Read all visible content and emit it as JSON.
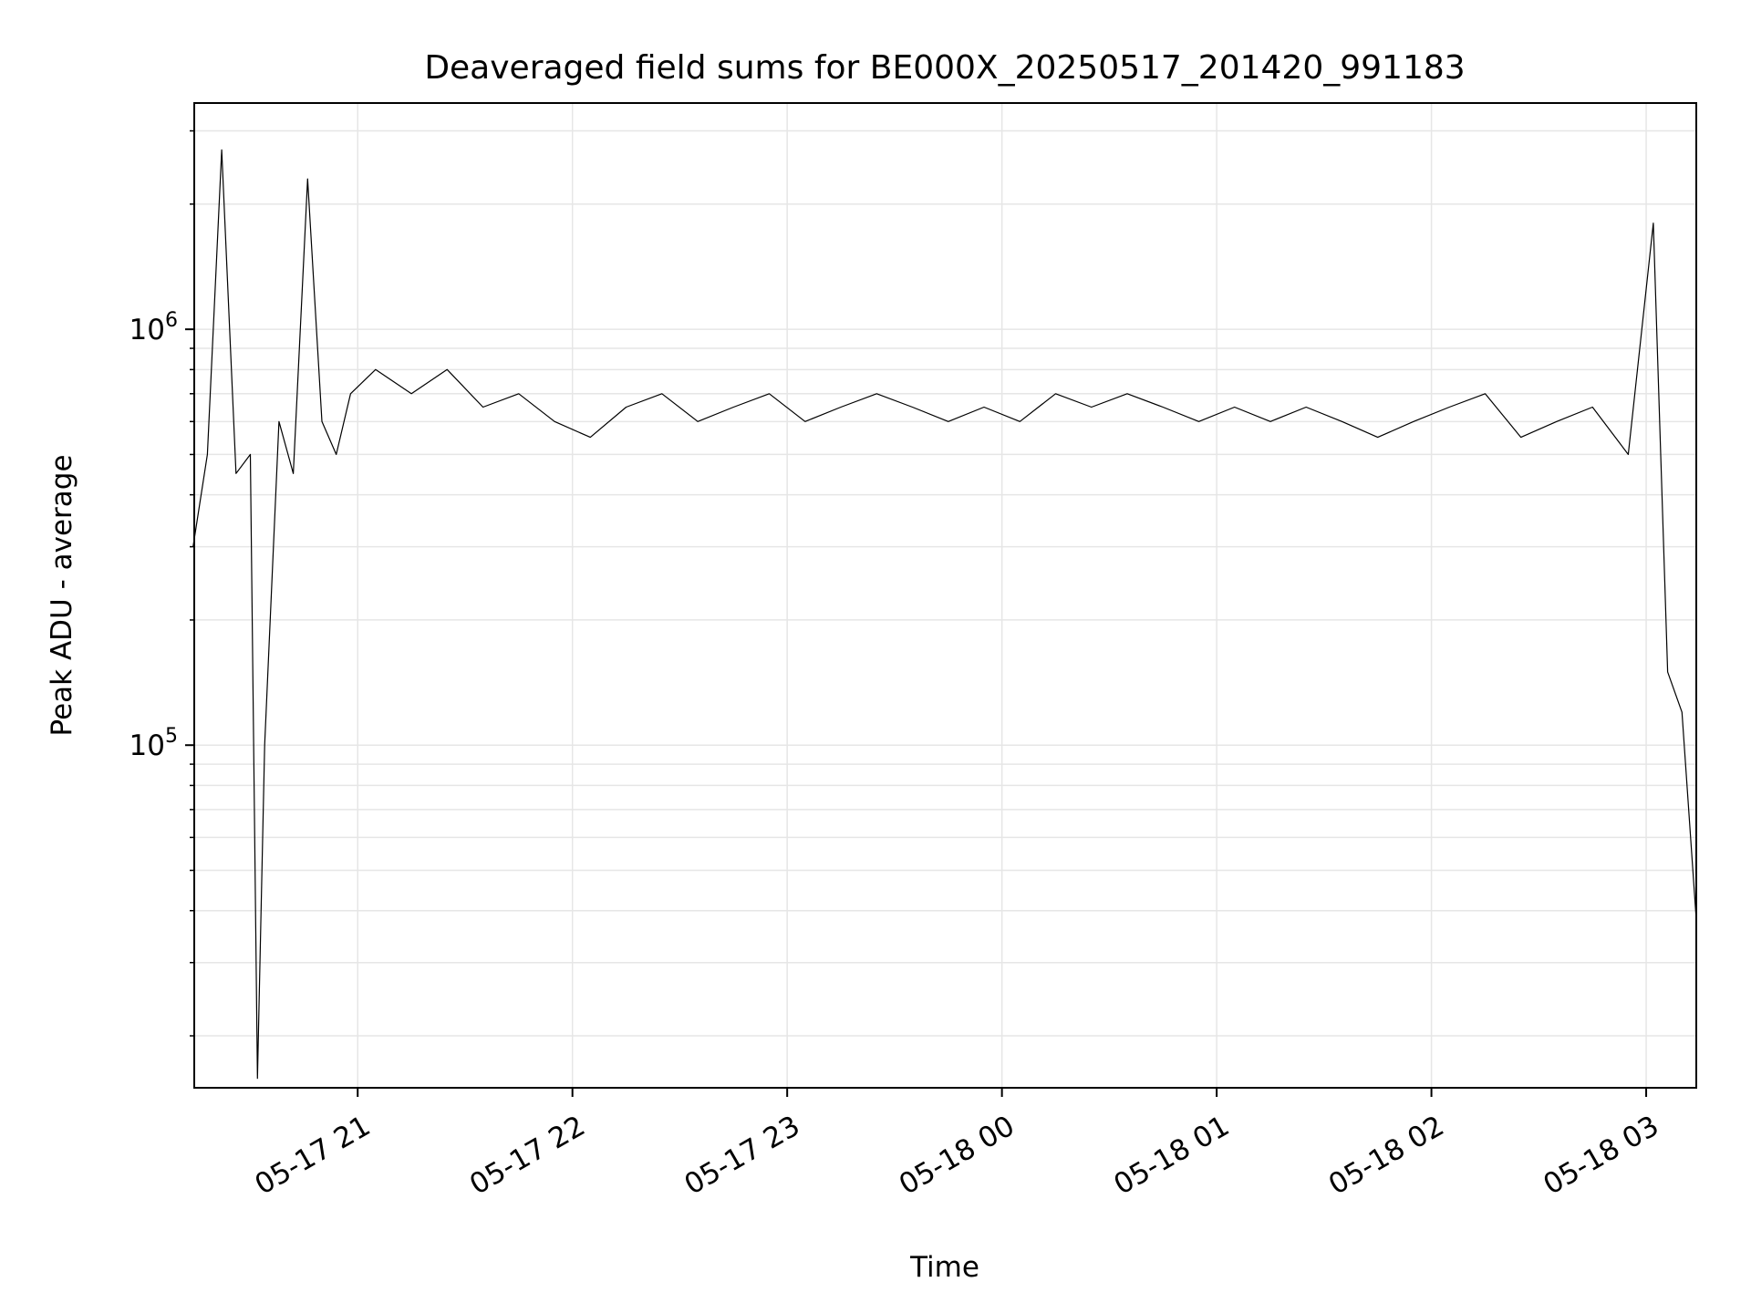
{
  "chart_data": {
    "type": "line",
    "title": "Deaveraged field sums for BE000X_20250517_201420_991183",
    "xlabel": "Time",
    "ylabel": "Peak ADU - average",
    "y_scale": "log",
    "ylim": [
      15000,
      3500000
    ],
    "xlim": [
      "2025-05-17 20:14:20",
      "2025-05-18 03:14:00"
    ],
    "x_ticks": [
      {
        "time": "2025-05-17 21:00",
        "label": "05-17 21"
      },
      {
        "time": "2025-05-17 22:00",
        "label": "05-17 22"
      },
      {
        "time": "2025-05-17 23:00",
        "label": "05-17 23"
      },
      {
        "time": "2025-05-18 00:00",
        "label": "05-18 00"
      },
      {
        "time": "2025-05-18 01:00",
        "label": "05-18 01"
      },
      {
        "time": "2025-05-18 02:00",
        "label": "05-18 02"
      },
      {
        "time": "2025-05-18 03:00",
        "label": "05-18 03"
      }
    ],
    "y_ticks": [
      {
        "value": 100000,
        "base": "10",
        "exp": "5"
      },
      {
        "value": 1000000,
        "base": "10",
        "exp": "6"
      }
    ],
    "grid": true,
    "line_color": "#000000",
    "grid_color": "#e6e6e6",
    "series": [
      {
        "x": [
          "2025-05-17 20:14",
          "2025-05-17 20:18",
          "2025-05-17 20:22",
          "2025-05-17 20:26",
          "2025-05-17 20:30",
          "2025-05-17 20:32",
          "2025-05-17 20:34",
          "2025-05-17 20:38",
          "2025-05-17 20:42",
          "2025-05-17 20:46",
          "2025-05-17 20:50",
          "2025-05-17 20:54",
          "2025-05-17 20:58",
          "2025-05-17 21:05",
          "2025-05-17 21:15",
          "2025-05-17 21:25",
          "2025-05-17 21:35",
          "2025-05-17 21:45",
          "2025-05-17 21:55",
          "2025-05-17 22:05",
          "2025-05-17 22:15",
          "2025-05-17 22:25",
          "2025-05-17 22:35",
          "2025-05-17 22:45",
          "2025-05-17 22:55",
          "2025-05-17 23:05",
          "2025-05-17 23:15",
          "2025-05-17 23:25",
          "2025-05-17 23:35",
          "2025-05-17 23:45",
          "2025-05-17 23:55",
          "2025-05-18 00:05",
          "2025-05-18 00:15",
          "2025-05-18 00:25",
          "2025-05-18 00:35",
          "2025-05-18 00:45",
          "2025-05-18 00:55",
          "2025-05-18 01:05",
          "2025-05-18 01:15",
          "2025-05-18 01:25",
          "2025-05-18 01:35",
          "2025-05-18 01:45",
          "2025-05-18 01:55",
          "2025-05-18 02:05",
          "2025-05-18 02:15",
          "2025-05-18 02:25",
          "2025-05-18 02:35",
          "2025-05-18 02:45",
          "2025-05-18 02:55",
          "2025-05-18 03:02",
          "2025-05-18 03:06",
          "2025-05-18 03:10",
          "2025-05-18 03:14"
        ],
        "values": [
          300000,
          500000,
          2700000,
          450000,
          500000,
          15800,
          100000,
          600000,
          450000,
          2300000,
          600000,
          500000,
          700000,
          800000,
          700000,
          800000,
          650000,
          700000,
          600000,
          550000,
          650000,
          700000,
          600000,
          650000,
          700000,
          600000,
          650000,
          700000,
          650000,
          600000,
          650000,
          600000,
          700000,
          650000,
          700000,
          650000,
          600000,
          650000,
          600000,
          650000,
          600000,
          550000,
          600000,
          650000,
          700000,
          550000,
          600000,
          650000,
          500000,
          1800000,
          150000,
          120000,
          38000
        ]
      }
    ]
  }
}
